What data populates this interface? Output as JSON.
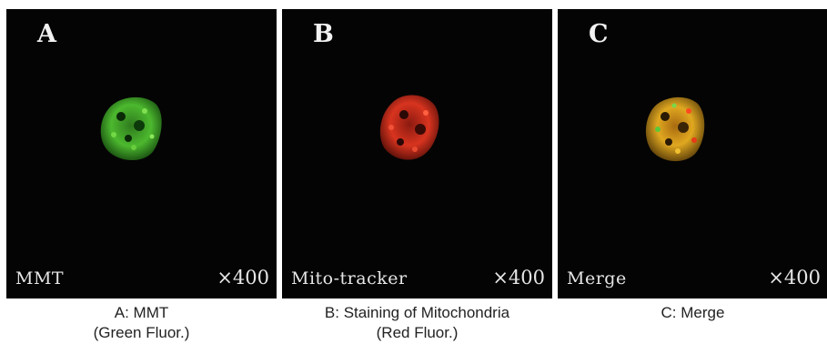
{
  "panels": [
    {
      "letter": "A",
      "overlay_label": "MMT",
      "magnification": "×400",
      "caption_line1": "A: MMT",
      "caption_line2": "(Green Fluor.)",
      "cell_color": "#3fa82a"
    },
    {
      "letter": "B",
      "overlay_label": "Mito-tracker",
      "magnification": "×400",
      "caption_line1": "B: Staining of Mitochondria",
      "caption_line2": "(Red Fluor.)",
      "cell_color": "#d83020"
    },
    {
      "letter": "C",
      "overlay_label": "Merge",
      "magnification": "×400",
      "caption_line1": "C: Merge",
      "caption_line2": "",
      "cell_color": "#d6a21c"
    }
  ]
}
